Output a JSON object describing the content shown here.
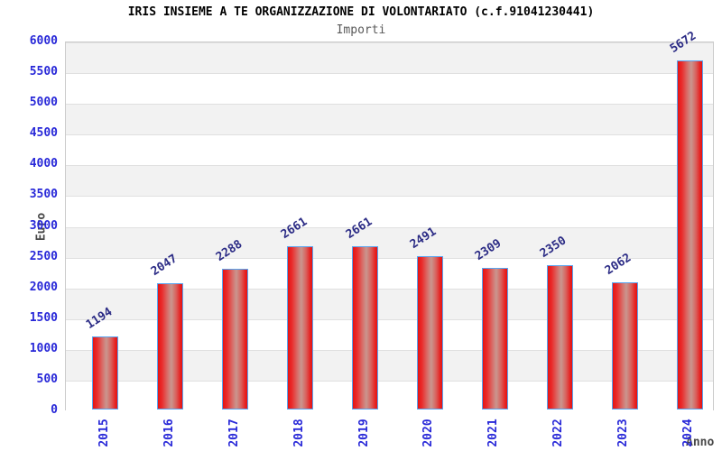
{
  "title": "IRIS INSIEME A TE ORGANIZZAZIONE DI VOLONTARIATO (c.f.91041230441)",
  "subtitle": "Importi",
  "chart_data": {
    "type": "bar",
    "title": "IRIS INSIEME A TE ORGANIZZAZIONE DI VOLONTARIATO (c.f.91041230441)",
    "subtitle": "Importi",
    "categories": [
      "2015",
      "2016",
      "2017",
      "2018",
      "2019",
      "2020",
      "2021",
      "2022",
      "2023",
      "2024"
    ],
    "values": [
      1194,
      2047,
      2288,
      2661,
      2661,
      2491,
      2309,
      2350,
      2062,
      5672
    ],
    "xlabel": "Anno",
    "ylabel": "Euro",
    "ylim": [
      0,
      6000
    ],
    "ytick_step": 500,
    "yticks": [
      0,
      500,
      1000,
      1500,
      2000,
      2500,
      3000,
      3500,
      4000,
      4500,
      5000,
      5500,
      6000
    ],
    "grid": "alternating-horizontal-bands",
    "legend": "none",
    "colors": {
      "bar_fill_edge": "#e41414",
      "bar_fill_center": "#c9968f",
      "bar_border": "#58a4f0",
      "tick_label": "#2828d8",
      "value_label": "#2b2b85",
      "axis_label": "#474747",
      "band_gray": "#f2f2f2",
      "band_white": "#ffffff",
      "grid_line": "#e0e0e0",
      "plot_border": "#cccccc",
      "title": "#000000",
      "subtitle": "#5a5a5a"
    }
  }
}
